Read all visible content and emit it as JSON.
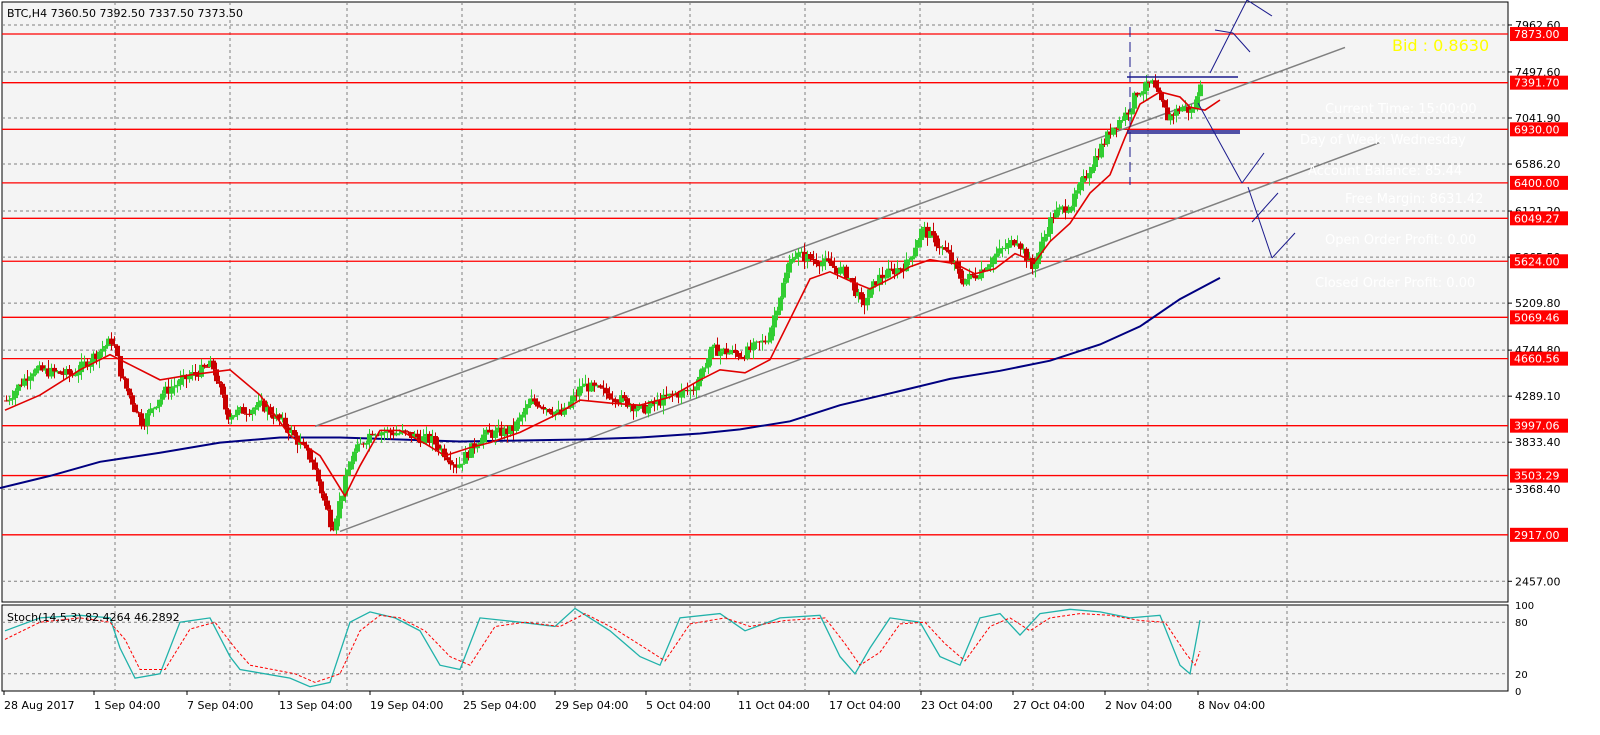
{
  "header": {
    "symbol_info": "BTC,H4  7360.50 7392.50 7337.50 7373.50"
  },
  "overlay": {
    "bid": "Bid : 0.8630",
    "current_time": "Current Time: 15:00:00",
    "day_label": "Day of Week: Wednesday",
    "line3": "Account Balance: 85.44",
    "line4": "Free Margin: 8631.42",
    "open_profit": "Open Order Profit: 0.00",
    "closed_profit": "Closed Order Profit: 0.00"
  },
  "colors": {
    "background": "#f4f4f4",
    "grid": "#808080",
    "bull_candle": "#32cd32",
    "bear_candle": "#c80000",
    "level_line": "#ff0000",
    "fast_ma": "#e00000",
    "slow_ma": "#000080",
    "channel": "#808080",
    "stoch_main": "#20b2aa",
    "stoch_signal": "#ff0000",
    "bid_text": "#ffff00"
  },
  "chart_data": [
    {
      "type": "candlestick",
      "symbol": "BTC",
      "timeframe": "H4",
      "ylim": [
        2252,
        8190
      ],
      "y_ticks": [
        7962.6,
        7497.6,
        7041.9,
        6586.2,
        6121.2,
        5665.5,
        5209.8,
        4744.8,
        4289.1,
        3833.4,
        3368.4,
        2457.0
      ],
      "x_labels": [
        "28 Aug 2017",
        "1 Sep 04:00",
        "7 Sep 04:00",
        "13 Sep 04:00",
        "19 Sep 04:00",
        "25 Sep 04:00",
        "29 Sep 04:00",
        "5 Oct 04:00",
        "11 Oct 04:00",
        "17 Oct 04:00",
        "23 Oct 04:00",
        "27 Oct 04:00",
        "2 Nov 04:00",
        "8 Nov 04:00"
      ],
      "horizontal_levels": [
        7873.0,
        7391.7,
        6930.0,
        6400.0,
        6049.27,
        5624.0,
        5069.46,
        4660.56,
        3997.06,
        3503.29,
        2917.0
      ],
      "price_path": [
        [
          0,
          4200
        ],
        [
          30,
          4550
        ],
        [
          70,
          4500
        ],
        [
          110,
          4850
        ],
        [
          120,
          4450
        ],
        [
          140,
          4020
        ],
        [
          160,
          4320
        ],
        [
          190,
          4500
        ],
        [
          210,
          4600
        ],
        [
          225,
          4100
        ],
        [
          260,
          4200
        ],
        [
          285,
          3980
        ],
        [
          310,
          3650
        ],
        [
          330,
          2980
        ],
        [
          350,
          3700
        ],
        [
          370,
          3950
        ],
        [
          400,
          3920
        ],
        [
          430,
          3850
        ],
        [
          455,
          3600
        ],
        [
          480,
          3900
        ],
        [
          510,
          3950
        ],
        [
          530,
          4250
        ],
        [
          560,
          4100
        ],
        [
          580,
          4400
        ],
        [
          610,
          4300
        ],
        [
          640,
          4150
        ],
        [
          670,
          4300
        ],
        [
          690,
          4350
        ],
        [
          710,
          4750
        ],
        [
          740,
          4700
        ],
        [
          765,
          4850
        ],
        [
          790,
          5700
        ],
        [
          820,
          5620
        ],
        [
          845,
          5500
        ],
        [
          860,
          5180
        ],
        [
          875,
          5450
        ],
        [
          905,
          5600
        ],
        [
          920,
          5950
        ],
        [
          945,
          5700
        ],
        [
          960,
          5430
        ],
        [
          975,
          5500
        ],
        [
          995,
          5700
        ],
        [
          1015,
          5850
        ],
        [
          1030,
          5550
        ],
        [
          1050,
          6080
        ],
        [
          1070,
          6200
        ],
        [
          1090,
          6600
        ],
        [
          1110,
          6950
        ],
        [
          1125,
          7100
        ],
        [
          1135,
          7300
        ],
        [
          1150,
          7380
        ],
        [
          1165,
          7050
        ],
        [
          1180,
          7150
        ],
        [
          1190,
          7100
        ],
        [
          1200,
          7373.5
        ]
      ],
      "ma_fast_path": [
        [
          5,
          4150
        ],
        [
          40,
          4300
        ],
        [
          80,
          4550
        ],
        [
          110,
          4700
        ],
        [
          130,
          4600
        ],
        [
          160,
          4450
        ],
        [
          190,
          4500
        ],
        [
          230,
          4550
        ],
        [
          260,
          4300
        ],
        [
          290,
          3900
        ],
        [
          320,
          3700
        ],
        [
          345,
          3300
        ],
        [
          360,
          3600
        ],
        [
          380,
          3950
        ],
        [
          400,
          3950
        ],
        [
          425,
          3820
        ],
        [
          445,
          3700
        ],
        [
          470,
          3780
        ],
        [
          490,
          3830
        ],
        [
          520,
          3930
        ],
        [
          555,
          4100
        ],
        [
          580,
          4250
        ],
        [
          610,
          4220
        ],
        [
          640,
          4200
        ],
        [
          670,
          4280
        ],
        [
          700,
          4450
        ],
        [
          720,
          4550
        ],
        [
          745,
          4520
        ],
        [
          770,
          4650
        ],
        [
          790,
          5050
        ],
        [
          810,
          5450
        ],
        [
          830,
          5520
        ],
        [
          850,
          5430
        ],
        [
          870,
          5350
        ],
        [
          890,
          5450
        ],
        [
          910,
          5570
        ],
        [
          930,
          5640
        ],
        [
          955,
          5600
        ],
        [
          975,
          5500
        ],
        [
          995,
          5550
        ],
        [
          1015,
          5700
        ],
        [
          1035,
          5620
        ],
        [
          1050,
          5820
        ],
        [
          1070,
          6000
        ],
        [
          1090,
          6300
        ],
        [
          1110,
          6480
        ],
        [
          1125,
          6850
        ],
        [
          1140,
          7180
        ],
        [
          1160,
          7300
        ],
        [
          1180,
          7250
        ],
        [
          1190,
          7150
        ],
        [
          1205,
          7120
        ],
        [
          1220,
          7220
        ]
      ],
      "ma_slow_path": [
        [
          0,
          3380
        ],
        [
          50,
          3500
        ],
        [
          100,
          3640
        ],
        [
          160,
          3730
        ],
        [
          220,
          3830
        ],
        [
          280,
          3880
        ],
        [
          340,
          3880
        ],
        [
          400,
          3860
        ],
        [
          460,
          3840
        ],
        [
          520,
          3850
        ],
        [
          580,
          3860
        ],
        [
          640,
          3880
        ],
        [
          700,
          3920
        ],
        [
          740,
          3960
        ],
        [
          790,
          4040
        ],
        [
          840,
          4200
        ],
        [
          900,
          4340
        ],
        [
          950,
          4460
        ],
        [
          1000,
          4540
        ],
        [
          1050,
          4640
        ],
        [
          1100,
          4800
        ],
        [
          1140,
          4980
        ],
        [
          1180,
          5250
        ],
        [
          1220,
          5460
        ]
      ],
      "channel_upper": [
        [
          315,
          3990
        ],
        [
          1345,
          7740
        ]
      ],
      "channel_lower": [
        [
          340,
          2950
        ],
        [
          1380,
          6800
        ]
      ]
    },
    {
      "type": "line",
      "name": "Stoch(14,5,3)",
      "values_label": "Stoch(14,5,3) 82.4264 46.2892",
      "ylim": [
        0,
        100
      ],
      "y_ticks": [
        100,
        80,
        20,
        0
      ],
      "series": [
        {
          "name": "main",
          "points": [
            [
              5,
              70
            ],
            [
              40,
              85
            ],
            [
              80,
              88
            ],
            [
              110,
              85
            ],
            [
              120,
              50
            ],
            [
              135,
              15
            ],
            [
              160,
              20
            ],
            [
              180,
              80
            ],
            [
              210,
              85
            ],
            [
              230,
              40
            ],
            [
              240,
              25
            ],
            [
              290,
              15
            ],
            [
              310,
              5
            ],
            [
              330,
              10
            ],
            [
              350,
              80
            ],
            [
              370,
              92
            ],
            [
              395,
              85
            ],
            [
              420,
              70
            ],
            [
              440,
              30
            ],
            [
              460,
              25
            ],
            [
              480,
              85
            ],
            [
              520,
              80
            ],
            [
              555,
              75
            ],
            [
              575,
              96
            ],
            [
              610,
              70
            ],
            [
              640,
              40
            ],
            [
              660,
              30
            ],
            [
              680,
              85
            ],
            [
              720,
              90
            ],
            [
              745,
              70
            ],
            [
              780,
              85
            ],
            [
              820,
              88
            ],
            [
              840,
              40
            ],
            [
              855,
              20
            ],
            [
              870,
              50
            ],
            [
              890,
              85
            ],
            [
              920,
              80
            ],
            [
              940,
              40
            ],
            [
              960,
              30
            ],
            [
              980,
              85
            ],
            [
              1000,
              90
            ],
            [
              1020,
              65
            ],
            [
              1040,
              90
            ],
            [
              1070,
              95
            ],
            [
              1100,
              92
            ],
            [
              1130,
              85
            ],
            [
              1160,
              88
            ],
            [
              1180,
              30
            ],
            [
              1190,
              20
            ],
            [
              1200,
              82.4
            ]
          ]
        },
        {
          "name": "signal",
          "points": [
            [
              5,
              60
            ],
            [
              40,
              80
            ],
            [
              80,
              85
            ],
            [
              110,
              80
            ],
            [
              125,
              60
            ],
            [
              140,
              25
            ],
            [
              165,
              25
            ],
            [
              190,
              72
            ],
            [
              215,
              80
            ],
            [
              235,
              50
            ],
            [
              250,
              30
            ],
            [
              295,
              20
            ],
            [
              315,
              10
            ],
            [
              340,
              20
            ],
            [
              360,
              70
            ],
            [
              380,
              88
            ],
            [
              400,
              85
            ],
            [
              425,
              70
            ],
            [
              450,
              40
            ],
            [
              470,
              30
            ],
            [
              495,
              75
            ],
            [
              525,
              80
            ],
            [
              560,
              75
            ],
            [
              585,
              90
            ],
            [
              615,
              72
            ],
            [
              645,
              50
            ],
            [
              665,
              35
            ],
            [
              690,
              78
            ],
            [
              725,
              85
            ],
            [
              750,
              75
            ],
            [
              785,
              82
            ],
            [
              825,
              85
            ],
            [
              845,
              55
            ],
            [
              860,
              30
            ],
            [
              880,
              45
            ],
            [
              900,
              78
            ],
            [
              925,
              80
            ],
            [
              945,
              55
            ],
            [
              965,
              35
            ],
            [
              990,
              75
            ],
            [
              1010,
              85
            ],
            [
              1030,
              70
            ],
            [
              1050,
              85
            ],
            [
              1080,
              90
            ],
            [
              1110,
              88
            ],
            [
              1140,
              82
            ],
            [
              1165,
              80
            ],
            [
              1185,
              45
            ],
            [
              1195,
              30
            ],
            [
              1200,
              46.3
            ]
          ]
        }
      ]
    }
  ]
}
